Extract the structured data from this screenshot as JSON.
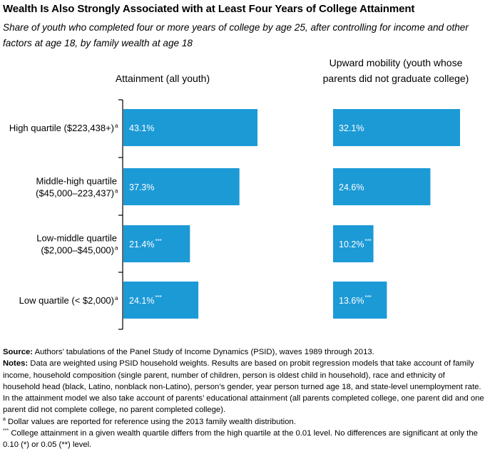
{
  "title": "Wealth Is Also Strongly Associated with at Least Four Years of College Attainment",
  "subtitle": "Share of youth who completed four or more years of college by age 25, after controlling for income and other factors at age 18, by family wealth at age 18",
  "colors": {
    "bar": "#1c9ad6",
    "bar_label": "#ffffff",
    "axis": "#000000"
  },
  "chart_data": {
    "type": "bar",
    "orientation": "horizontal",
    "categories": [
      {
        "lines": [
          "High quartile ($223,438+)"
        ],
        "superscript": "a"
      },
      {
        "lines": [
          "Middle-high quartile",
          "($45,000–223,437)"
        ],
        "superscript": "a"
      },
      {
        "lines": [
          "Low-middle quartile",
          "($2,000–$45,000)"
        ],
        "superscript": "a"
      },
      {
        "lines": [
          "Low quartile (< $2,000)"
        ],
        "superscript": "a"
      }
    ],
    "panels": [
      {
        "title_lines": [
          "Attainment (all youth)"
        ],
        "values": [
          43.1,
          37.3,
          21.4,
          24.1
        ],
        "labels": [
          "43.1%",
          "37.3%",
          "21.4%",
          "24.1%"
        ],
        "significance": [
          "",
          "",
          "***",
          "***"
        ]
      },
      {
        "title_lines": [
          "Upward mobility (youth whose",
          "parents did not graduate college)"
        ],
        "values": [
          32.1,
          24.6,
          10.2,
          13.6
        ],
        "labels": [
          "32.1%",
          "24.6%",
          "10.2%",
          "13.6%"
        ],
        "significance": [
          "",
          "",
          "***",
          "***"
        ]
      }
    ],
    "legend": "none",
    "grid": false
  },
  "notes": {
    "source_label": "Source:",
    "source_text": " Authors’ tabulations of the Panel Study of Income Dynamics (PSID), waves 1989 through 2013.",
    "notes_label": "Notes:",
    "notes_text": " Data are weighted using PSID household weights. Results are based on probit regression models that take account of family income, household composition (single parent, number of children, person is oldest child in household), race and ethnicity of household head (black, Latino, nonblack non-Latino), person’s gender, year person turned age 18, and state-level unemployment rate. In the attainment model we also take account of parents’ educational attainment (all parents completed college, one parent did and one parent did not complete college, no parent completed college).",
    "footnote_a_mark": "a",
    "footnote_a": " Dollar values are reported for reference using the 2013 family wealth distribution.",
    "footnote_sig_mark": "***",
    "footnote_sig": " College attainment in a given wealth quartile differs from the high quartile at the 0.01 level. No differences are significant at only the 0.10 (*) or 0.05 (**) level."
  }
}
